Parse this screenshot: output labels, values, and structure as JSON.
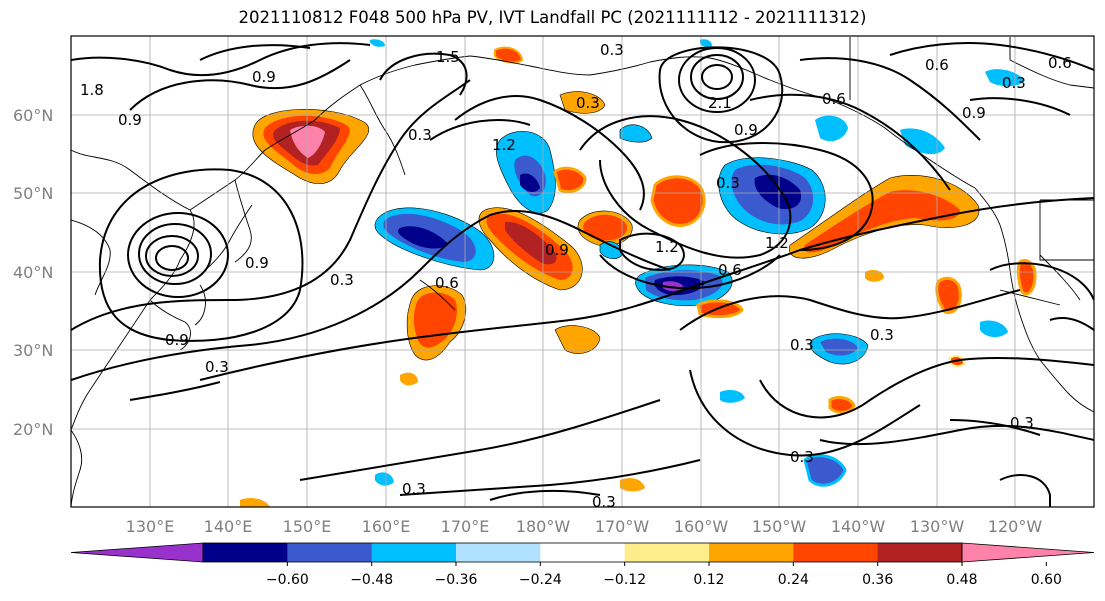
{
  "title": "2021110812 F048 500 hPa PV, IVT Landfall PC (2021111112 - 2021111312)",
  "lat_labels": [
    "60°N",
    "50°N",
    "40°N",
    "30°N",
    "20°N"
  ],
  "lon_labels": [
    "130°E",
    "140°E",
    "150°E",
    "160°E",
    "170°E",
    "180°W",
    "170°W",
    "160°W",
    "150°W",
    "140°W",
    "130°W",
    "120°W"
  ],
  "contour_labels": [
    "0.9",
    "0.6",
    "0.3",
    "1.2",
    "1.5",
    "1.8",
    "2.1"
  ],
  "colorbar": {
    "ticks": [
      "−0.60",
      "−0.48",
      "−0.36",
      "−0.24",
      "−0.12",
      "0.12",
      "0.24",
      "0.36",
      "0.48",
      "0.60"
    ],
    "colors": [
      "#9932cc",
      "#00008b",
      "#3a5acd",
      "#00bfff",
      "#b0e2ff",
      "#ffffff",
      "#ffec8b",
      "#ffa500",
      "#ff4500",
      "#b22222",
      "#ff82ab"
    ]
  }
}
